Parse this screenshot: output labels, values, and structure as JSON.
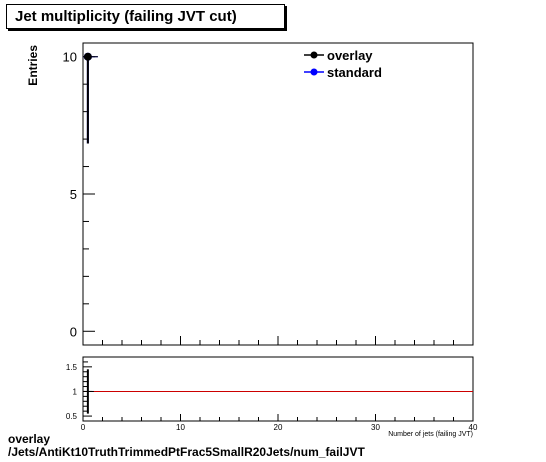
{
  "chart_data": [
    {
      "type": "scatter",
      "title": "Jet multiplicity (failing JVT cut)",
      "ylabel": "Entries",
      "xlim": [
        0,
        40
      ],
      "ylim": [
        -0.5,
        10.5
      ],
      "yticks": [
        0,
        5,
        10
      ],
      "xticks": [
        0,
        10,
        20,
        30,
        40
      ],
      "grid": false,
      "legend_position": "top-right",
      "series": [
        {
          "name": "overlay",
          "color": "#000000",
          "points": [
            {
              "x": 0.5,
              "y": 10,
              "yerr_low": 3.16,
              "yerr_high": 0
            }
          ]
        },
        {
          "name": "standard",
          "color": "#0000ff",
          "points": [
            {
              "x": 0.5,
              "y": 10,
              "yerr_low": 3.16,
              "yerr_high": 0
            }
          ]
        }
      ]
    },
    {
      "type": "line",
      "xlabel": "Number of jets (failing JVT)",
      "xlim": [
        0,
        40
      ],
      "ylim": [
        0.4,
        1.7
      ],
      "yticks": [
        0.5,
        1,
        1.5
      ],
      "xticks": [
        0,
        10,
        20,
        30,
        40
      ],
      "reference_line": {
        "y": 1,
        "color": "#cc0000"
      },
      "series": [
        {
          "name": "ratio",
          "color": "#000000",
          "points": [
            {
              "x": 0.5,
              "y": 1,
              "yerr": 0.45
            }
          ]
        }
      ]
    }
  ],
  "footer": {
    "line1": "overlay",
    "line2": "/Jets/AntiKt10TruthTrimmedPtFrac5SmallR20Jets/num_failJVT"
  }
}
